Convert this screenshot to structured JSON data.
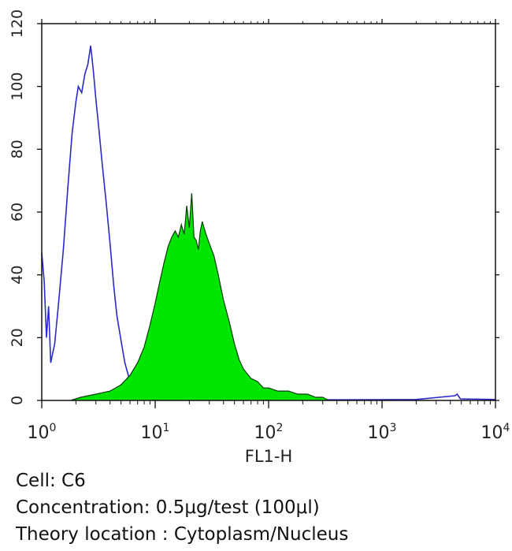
{
  "chart_data": {
    "type": "line",
    "title": "",
    "xlabel": "FL1-H",
    "ylabel": "",
    "x_scale": "log",
    "xlim": [
      1,
      10000
    ],
    "ylim": [
      0,
      120
    ],
    "x_ticks": [
      {
        "base": "10",
        "exp": "0",
        "value": 1
      },
      {
        "base": "10",
        "exp": "1",
        "value": 10
      },
      {
        "base": "10",
        "exp": "2",
        "value": 100
      },
      {
        "base": "10",
        "exp": "3",
        "value": 1000
      },
      {
        "base": "10",
        "exp": "4",
        "value": 10000
      }
    ],
    "y_ticks": [
      "0",
      "20",
      "40",
      "60",
      "80",
      "100",
      "120"
    ],
    "series": [
      {
        "style": "outline",
        "color": "#2a2acc",
        "points": [
          [
            1.0,
            47
          ],
          [
            1.05,
            38
          ],
          [
            1.1,
            20
          ],
          [
            1.15,
            30
          ],
          [
            1.2,
            12
          ],
          [
            1.3,
            18
          ],
          [
            1.4,
            30
          ],
          [
            1.55,
            48
          ],
          [
            1.7,
            68
          ],
          [
            1.85,
            85
          ],
          [
            2.0,
            95
          ],
          [
            2.1,
            100
          ],
          [
            2.25,
            98
          ],
          [
            2.4,
            104
          ],
          [
            2.55,
            107
          ],
          [
            2.7,
            113
          ],
          [
            2.85,
            105
          ],
          [
            3.0,
            96
          ],
          [
            3.2,
            86
          ],
          [
            3.4,
            76
          ],
          [
            3.7,
            63
          ],
          [
            4.0,
            50
          ],
          [
            4.3,
            37
          ],
          [
            4.6,
            27
          ],
          [
            5.0,
            19
          ],
          [
            5.4,
            12
          ],
          [
            5.8,
            8
          ],
          [
            6.3,
            5
          ],
          [
            7.0,
            2
          ],
          [
            8.0,
            1
          ],
          [
            10,
            0.5
          ],
          [
            50,
            0.3
          ],
          [
            400,
            0.2
          ],
          [
            2000,
            0.3
          ],
          [
            4400,
            1.5
          ],
          [
            4600,
            2
          ],
          [
            4900,
            0.5
          ],
          [
            10000,
            0.3
          ]
        ]
      },
      {
        "style": "filled",
        "color": "#00e600",
        "points": [
          [
            1.8,
            0
          ],
          [
            2.2,
            1
          ],
          [
            3.0,
            2
          ],
          [
            4.0,
            3
          ],
          [
            5.0,
            5
          ],
          [
            6.0,
            8
          ],
          [
            7.0,
            12
          ],
          [
            8.0,
            17
          ],
          [
            9.0,
            24
          ],
          [
            10,
            31
          ],
          [
            11,
            38
          ],
          [
            12,
            44
          ],
          [
            13,
            49
          ],
          [
            14,
            52
          ],
          [
            15,
            54
          ],
          [
            16,
            52
          ],
          [
            17,
            56
          ],
          [
            18,
            53
          ],
          [
            19,
            62
          ],
          [
            20,
            55
          ],
          [
            21,
            66
          ],
          [
            22,
            52
          ],
          [
            23,
            51
          ],
          [
            24,
            48
          ],
          [
            25,
            54
          ],
          [
            26,
            57
          ],
          [
            28,
            53
          ],
          [
            30,
            50
          ],
          [
            33,
            46
          ],
          [
            36,
            40
          ],
          [
            40,
            32
          ],
          [
            45,
            25
          ],
          [
            50,
            18
          ],
          [
            55,
            13
          ],
          [
            60,
            10
          ],
          [
            70,
            7
          ],
          [
            80,
            6
          ],
          [
            90,
            4
          ],
          [
            100,
            4
          ],
          [
            120,
            3
          ],
          [
            150,
            3
          ],
          [
            180,
            2
          ],
          [
            220,
            2
          ],
          [
            260,
            1
          ],
          [
            300,
            1
          ],
          [
            340,
            0
          ]
        ]
      }
    ]
  },
  "caption": {
    "cell": "Cell: C6",
    "concentration": "Concentration: 0.5μg/test (100μl)",
    "location": "Theory location : Cytoplasm/Nucleus"
  }
}
